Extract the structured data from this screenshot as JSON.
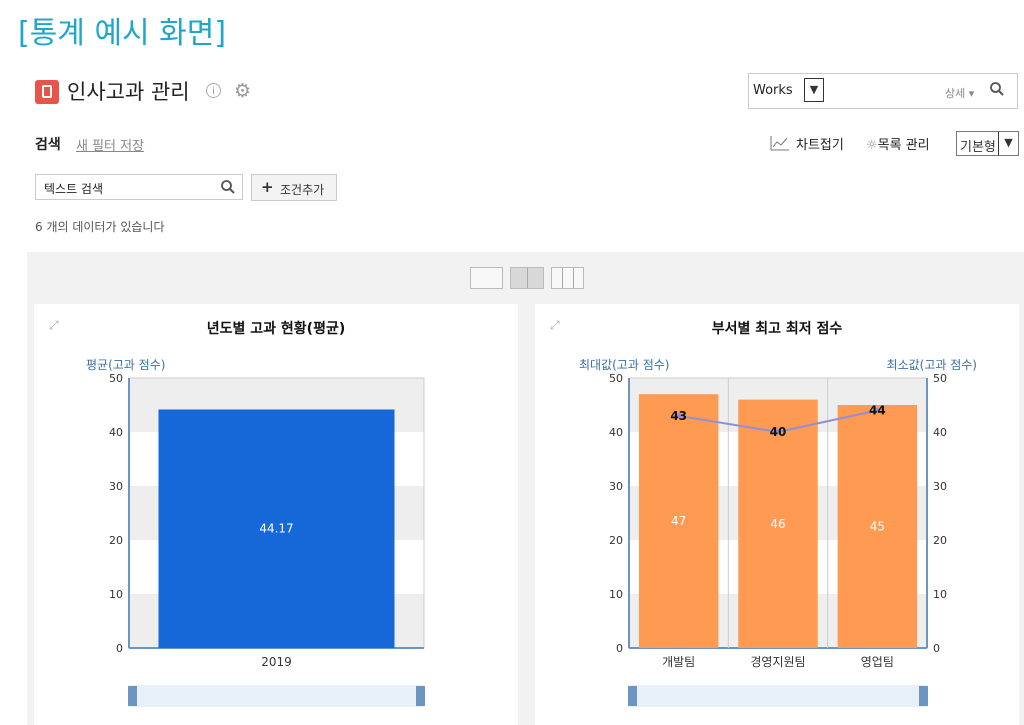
{
  "caption": "[통계 예시 화면]",
  "header": {
    "title": "인사고과 관리",
    "info_glyph": "i",
    "icons": [
      "book-icon",
      "info-icon",
      "gear-icon"
    ]
  },
  "search": {
    "scope": "Works",
    "detail": "상세",
    "icon": "search-icon"
  },
  "toolbar": {
    "search_label": "검색",
    "save_filter": "새 필터 저장",
    "chart_fold": "차트접기",
    "list_manage": "목록 관리",
    "view_type": "기본형"
  },
  "filter": {
    "text_search": "텍스트 검색",
    "add_condition": "조건추가"
  },
  "count_text": "6 개의 데이터가 있습니다",
  "colors": {
    "caption": "#1fa6c9",
    "bar_blue": "#1668d8",
    "bar_orange": "#ff9a52",
    "line": "#8f8fd8"
  },
  "chart_data": [
    {
      "type": "bar",
      "title": "년도별 고과 현황(평균)",
      "ylabel": "평균(고과 점수)",
      "categories": [
        "2019"
      ],
      "values": [
        44.17
      ],
      "ylim": [
        0,
        50
      ],
      "yticks": [
        0,
        10,
        20,
        30,
        40,
        50
      ]
    },
    {
      "type": "bar",
      "title": "부서별 최고 최저 점수",
      "ylabel": "최대값(고과 점수)",
      "ylabel_right": "최소값(고과 점수)",
      "categories": [
        "개발팀",
        "경영지원팀",
        "영업팀"
      ],
      "series": [
        {
          "name": "최대값",
          "type": "bar",
          "values": [
            47,
            46,
            45
          ],
          "display_values": [
            47,
            46,
            45
          ]
        },
        {
          "name": "최소값",
          "type": "line",
          "values": [
            43,
            40,
            44
          ]
        }
      ],
      "ylim": [
        0,
        50
      ],
      "yticks": [
        0,
        10,
        20,
        30,
        40,
        50
      ]
    }
  ]
}
